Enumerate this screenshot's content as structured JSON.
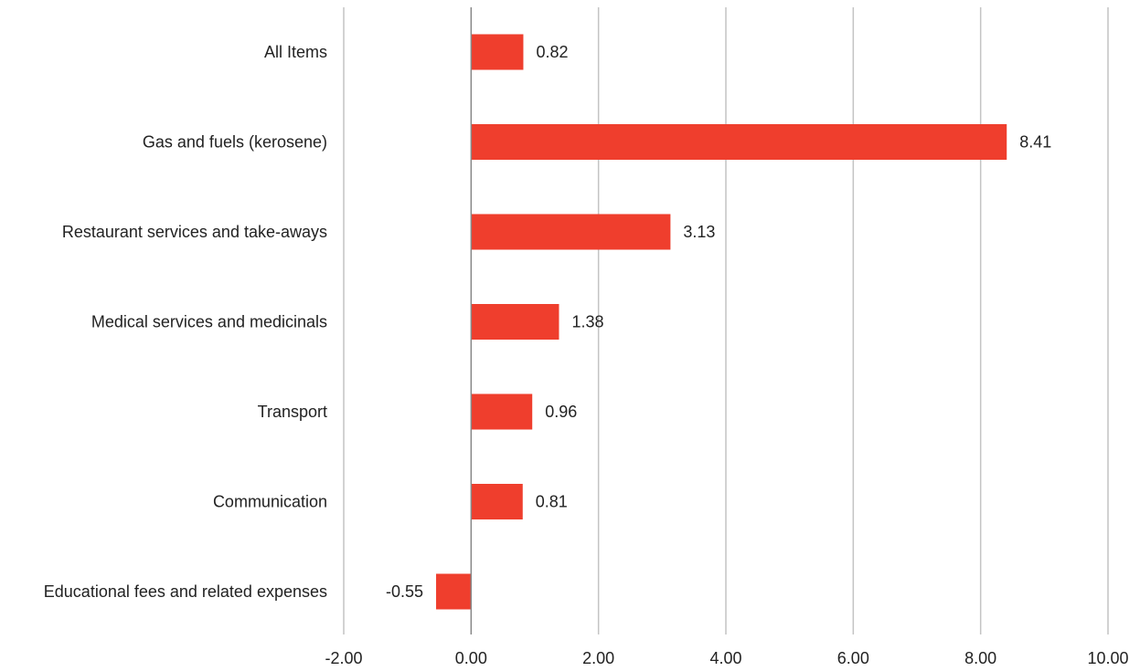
{
  "chart_data": {
    "type": "bar",
    "orientation": "horizontal",
    "title": "",
    "xlabel": "",
    "ylabel": "",
    "categories": [
      "All Items",
      "Gas and fuels (kerosene)",
      "Restaurant services and take-aways",
      "Medical services and medicinals",
      "Transport",
      "Communication",
      "Educational fees and related expenses"
    ],
    "values": [
      0.82,
      8.41,
      3.13,
      1.38,
      0.96,
      0.81,
      -0.55
    ],
    "value_labels": [
      "0.82",
      "8.41",
      "3.13",
      "1.38",
      "0.96",
      "0.81",
      "-0.55"
    ],
    "xlim": [
      -2,
      10
    ],
    "xticks": [
      -2,
      0,
      2,
      4,
      6,
      8,
      10
    ],
    "xtick_labels": [
      "-2.00",
      "0.00",
      "2.00",
      "4.00",
      "6.00",
      "8.00",
      "10.00"
    ],
    "grid": "vertical",
    "legend": "none",
    "colors": {
      "bar": "#ef3e2d",
      "grid": "#c4c4c4",
      "zero_axis": "#888888",
      "text": "#222222"
    }
  }
}
